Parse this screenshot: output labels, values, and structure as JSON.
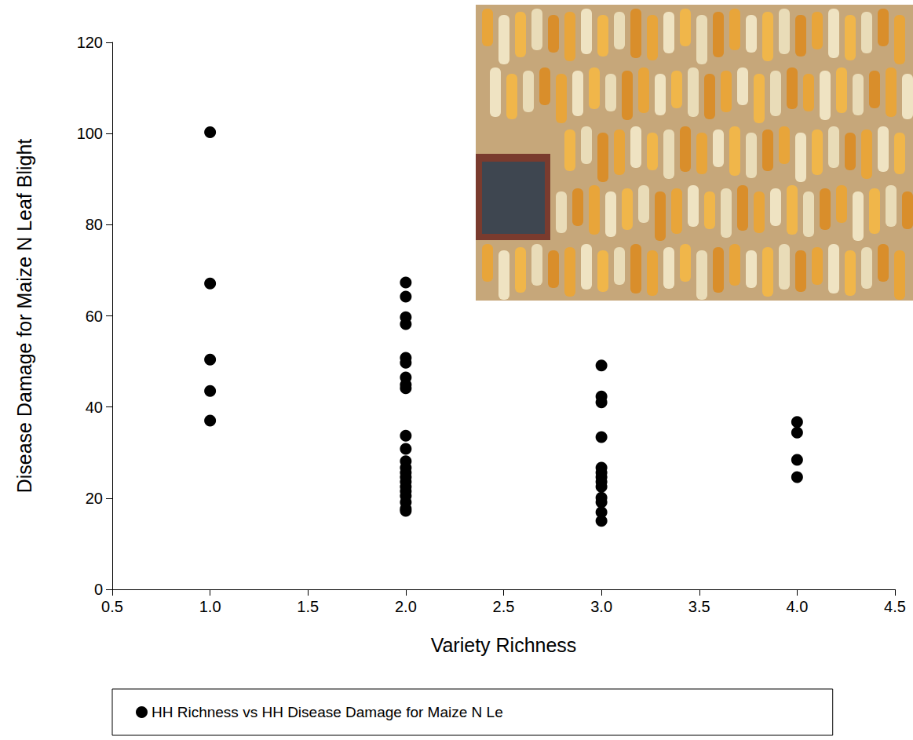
{
  "chart_data": {
    "type": "scatter",
    "xlabel": "Variety Richness",
    "ylabel": "Disease Damage for Maize N Leaf Blight",
    "series": [
      {
        "name": "HH Richness vs HH Disease Damage for Maize N Le",
        "color": "#000000",
        "marker": "circle",
        "x": [
          1,
          1,
          1,
          1,
          1,
          2,
          2,
          2,
          2,
          2,
          2,
          2,
          2,
          2,
          2,
          2,
          2,
          2,
          2,
          2,
          2,
          2,
          2,
          2,
          2,
          2,
          2,
          3,
          3,
          3,
          3,
          3,
          3,
          3,
          3,
          3,
          3,
          3,
          3,
          3,
          4,
          4,
          4,
          4
        ],
        "values": [
          100.3,
          67.1,
          50.4,
          43.5,
          37.0,
          67.3,
          64.2,
          59.7,
          58.2,
          50.8,
          49.7,
          46.5,
          44.9,
          44.1,
          33.7,
          30.8,
          28.1,
          26.7,
          25.6,
          24.6,
          23.6,
          22.5,
          21.5,
          20.5,
          19.1,
          17.7,
          17.2,
          49.1,
          42.3,
          41.0,
          33.4,
          26.7,
          25.6,
          24.6,
          23.6,
          22.5,
          20.1,
          19.1,
          16.9,
          15.0,
          36.7,
          34.4,
          28.4,
          24.6
        ]
      }
    ],
    "xlim": [
      0.5,
      4.5
    ],
    "xticks": [
      0.5,
      {
        "value": 1,
        "label": "1.0"
      },
      1.5,
      {
        "value": 2,
        "label": "2.0"
      },
      2.5,
      {
        "value": 3,
        "label": "3.0"
      },
      3.5,
      {
        "value": 4,
        "label": "4.0"
      },
      4.5
    ],
    "ylim": [
      0,
      120
    ],
    "yticks": [
      0,
      20,
      40,
      60,
      80,
      100,
      120
    ],
    "grid": false,
    "legend": "bottom"
  }
}
